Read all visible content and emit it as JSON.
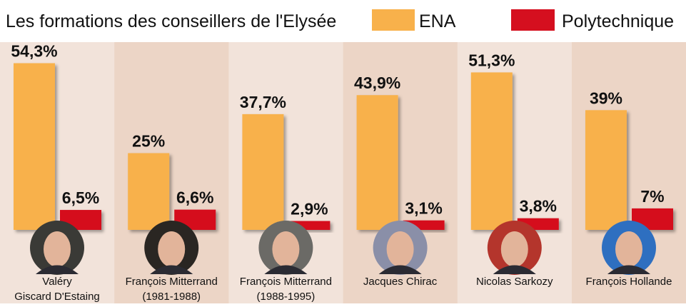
{
  "chart_data": {
    "type": "bar",
    "title": "Les formations des conseillers de l'Elysée",
    "xlabel": "",
    "ylabel": "",
    "ylim": [
      0,
      60
    ],
    "legend_position": "top-right",
    "categories": [
      {
        "line1": "Valéry",
        "line2": "Giscard D'Estaing"
      },
      {
        "line1": "François Mitterrand",
        "line2": "(1981-1988)"
      },
      {
        "line1": "François Mitterrand",
        "line2": "(1988-1995)"
      },
      {
        "line1": "Jacques Chirac",
        "line2": ""
      },
      {
        "line1": "Nicolas Sarkozy",
        "line2": ""
      },
      {
        "line1": "François Hollande",
        "line2": ""
      }
    ],
    "series": [
      {
        "name": "ENA",
        "color": "#f8b14b",
        "values": [
          54.3,
          25,
          37.7,
          43.9,
          51.3,
          39
        ],
        "labels": [
          "54,3%",
          "25%",
          "37,7%",
          "43,9%",
          "51,3%",
          "39%"
        ]
      },
      {
        "name": "Polytechnique",
        "color": "#d50f1f",
        "values": [
          6.5,
          6.6,
          2.9,
          3.1,
          3.8,
          7
        ],
        "labels": [
          "6,5%",
          "6,6%",
          "2,9%",
          "3,1%",
          "3,8%",
          "7%"
        ]
      }
    ],
    "panel_colors": [
      "#f2e3da",
      "#ecd5c6"
    ],
    "photo_bg_colors": [
      "#3a3a36",
      "#2a2622",
      "#6b6a66",
      "#8a8fa8",
      "#b4352c",
      "#2e6fc0"
    ]
  }
}
